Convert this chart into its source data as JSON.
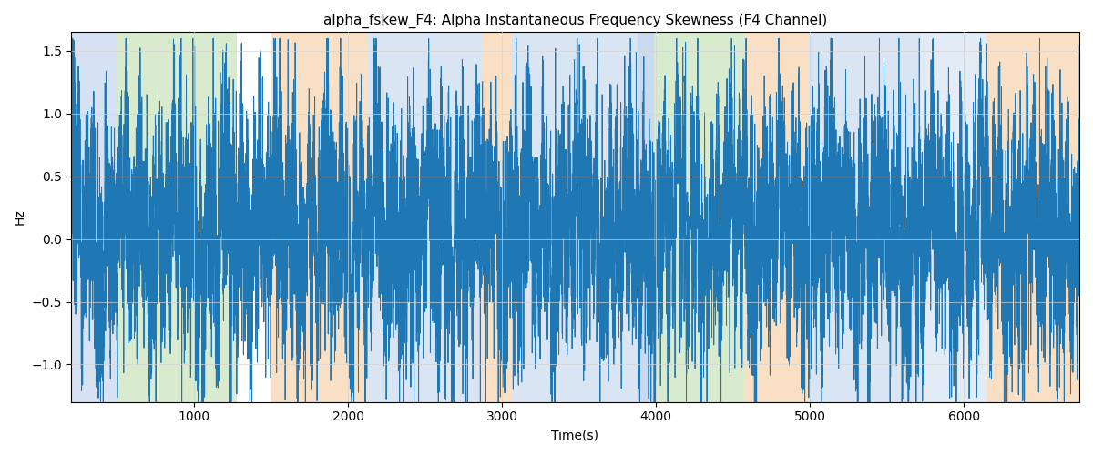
{
  "title": "alpha_fskew_F4: Alpha Instantaneous Frequency Skewness (F4 Channel)",
  "xlabel": "Time(s)",
  "ylabel": "Hz",
  "xlim": [
    200,
    6750
  ],
  "ylim": [
    -1.3,
    1.65
  ],
  "line_color": "#1f77b4",
  "line_width": 0.7,
  "background_bands": [
    {
      "xmin": 200,
      "xmax": 490,
      "color": "#aec6e8",
      "alpha": 0.5
    },
    {
      "xmin": 490,
      "xmax": 1280,
      "color": "#b5d9a0",
      "alpha": 0.5
    },
    {
      "xmin": 1280,
      "xmax": 1500,
      "color": "#ffffff",
      "alpha": 0.0
    },
    {
      "xmin": 1500,
      "xmax": 2130,
      "color": "#f5c894",
      "alpha": 0.55
    },
    {
      "xmin": 2130,
      "xmax": 2870,
      "color": "#aec6e8",
      "alpha": 0.45
    },
    {
      "xmin": 2870,
      "xmax": 3060,
      "color": "#f5c894",
      "alpha": 0.55
    },
    {
      "xmin": 3060,
      "xmax": 3880,
      "color": "#aec6e8",
      "alpha": 0.45
    },
    {
      "xmin": 3880,
      "xmax": 3990,
      "color": "#aec6e8",
      "alpha": 0.65
    },
    {
      "xmin": 3990,
      "xmax": 4170,
      "color": "#b5d9a0",
      "alpha": 0.5
    },
    {
      "xmin": 4170,
      "xmax": 4570,
      "color": "#b5d9a0",
      "alpha": 0.5
    },
    {
      "xmin": 4570,
      "xmax": 4760,
      "color": "#f5c894",
      "alpha": 0.55
    },
    {
      "xmin": 4760,
      "xmax": 4990,
      "color": "#f5c894",
      "alpha": 0.55
    },
    {
      "xmin": 4990,
      "xmax": 5720,
      "color": "#aec6e8",
      "alpha": 0.45
    },
    {
      "xmin": 5720,
      "xmax": 6150,
      "color": "#aec6e8",
      "alpha": 0.35
    },
    {
      "xmin": 6150,
      "xmax": 6750,
      "color": "#f5c894",
      "alpha": 0.55
    }
  ],
  "seed": 7,
  "n_points": 13100,
  "x_start": 200,
  "x_end": 6750,
  "yticks": [
    -1.0,
    -0.5,
    0.0,
    0.5,
    1.0,
    1.5
  ],
  "xticks": [
    1000,
    2000,
    3000,
    4000,
    5000,
    6000
  ],
  "title_fontsize": 11,
  "label_fontsize": 10,
  "tick_fontsize": 10
}
